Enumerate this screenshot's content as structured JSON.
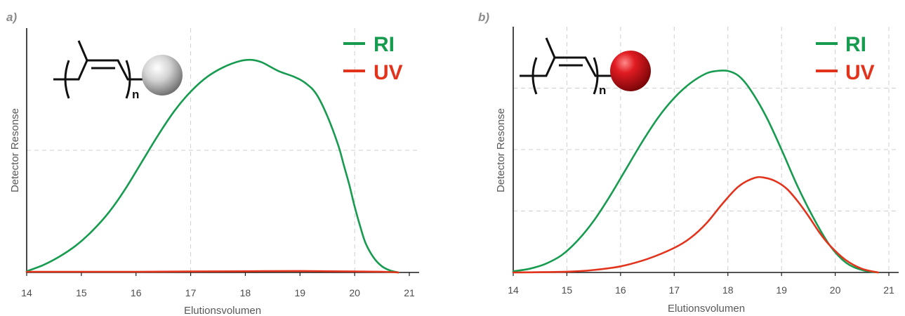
{
  "colors": {
    "ri": "#169b4f",
    "uv": "#e2341d",
    "grey_bead": "#bdbdbd",
    "red_bead": "#d8141c"
  },
  "chart_data": [
    {
      "type": "line",
      "panel_label": "a)",
      "xlabel": "Elutionsvolumen",
      "ylabel": "Detector Resonse",
      "xlim": [
        14,
        21
      ],
      "ylim": [
        0,
        100
      ],
      "xticks": [
        "14",
        "15",
        "16",
        "17",
        "18",
        "19",
        "20",
        "21"
      ],
      "grid": true,
      "legend_position": "top-right",
      "structure_subscript": "n",
      "bead": "grey",
      "series": [
        {
          "name": "RI",
          "color": "#169b4f",
          "x": [
            14.0,
            14.3,
            14.6,
            14.9,
            15.2,
            15.5,
            15.8,
            16.1,
            16.4,
            16.7,
            17.0,
            17.3,
            17.6,
            17.9,
            18.1,
            18.3,
            18.6,
            18.9,
            19.1,
            19.3,
            19.5,
            19.7,
            19.8,
            19.9,
            20.0,
            20.1,
            20.2,
            20.35,
            20.5,
            20.65,
            20.8
          ],
          "y": [
            0.5,
            3,
            6.5,
            11,
            17,
            24.5,
            34,
            45,
            56,
            66,
            74,
            80,
            84,
            86.5,
            87,
            86,
            82.5,
            80,
            77.5,
            73,
            64,
            52,
            44,
            36,
            27,
            19,
            12,
            6,
            2.5,
            0.8,
            0
          ]
        },
        {
          "name": "UV",
          "color": "#e2341d",
          "x": [
            14.0,
            15.0,
            16.0,
            17.0,
            18.0,
            19.0,
            19.5,
            20.0,
            20.5,
            20.8
          ],
          "y": [
            0.3,
            0.3,
            0.3,
            0.4,
            0.5,
            0.6,
            0.5,
            0.4,
            0.3,
            0
          ]
        }
      ]
    },
    {
      "type": "line",
      "panel_label": "b)",
      "xlabel": "Elutionsvolumen",
      "ylabel": "Detector Resonse",
      "xlim": [
        14,
        21
      ],
      "ylim": [
        0,
        100
      ],
      "xticks": [
        "14",
        "15",
        "16",
        "17",
        "18",
        "19",
        "20",
        "21"
      ],
      "grid": true,
      "legend_position": "top-right",
      "structure_subscript": "n",
      "bead": "red",
      "series": [
        {
          "name": "RI",
          "color": "#169b4f",
          "x": [
            14.0,
            14.3,
            14.6,
            14.9,
            15.2,
            15.5,
            15.8,
            16.1,
            16.4,
            16.7,
            17.0,
            17.3,
            17.6,
            17.8,
            18.0,
            18.2,
            18.4,
            18.7,
            19.0,
            19.3,
            19.6,
            19.9,
            20.2,
            20.5,
            20.8
          ],
          "y": [
            0.5,
            1.5,
            3.5,
            7,
            13,
            21,
            31,
            42,
            53,
            63,
            71,
            77,
            81,
            82,
            82,
            80,
            75,
            64,
            50,
            35,
            22,
            11,
            4,
            1,
            0
          ]
        },
        {
          "name": "UV",
          "color": "#e2341d",
          "x": [
            14.0,
            15.0,
            15.5,
            16.0,
            16.5,
            17.0,
            17.3,
            17.6,
            17.9,
            18.2,
            18.5,
            18.7,
            18.9,
            19.1,
            19.3,
            19.5,
            19.7,
            19.9,
            20.2,
            20.5,
            20.8
          ],
          "y": [
            0,
            0.3,
            1,
            2.5,
            5.5,
            10,
            14,
            20,
            28,
            35,
            38.5,
            38.5,
            37,
            34,
            29,
            23,
            16.5,
            11,
            5,
            1.5,
            0
          ]
        }
      ]
    }
  ]
}
